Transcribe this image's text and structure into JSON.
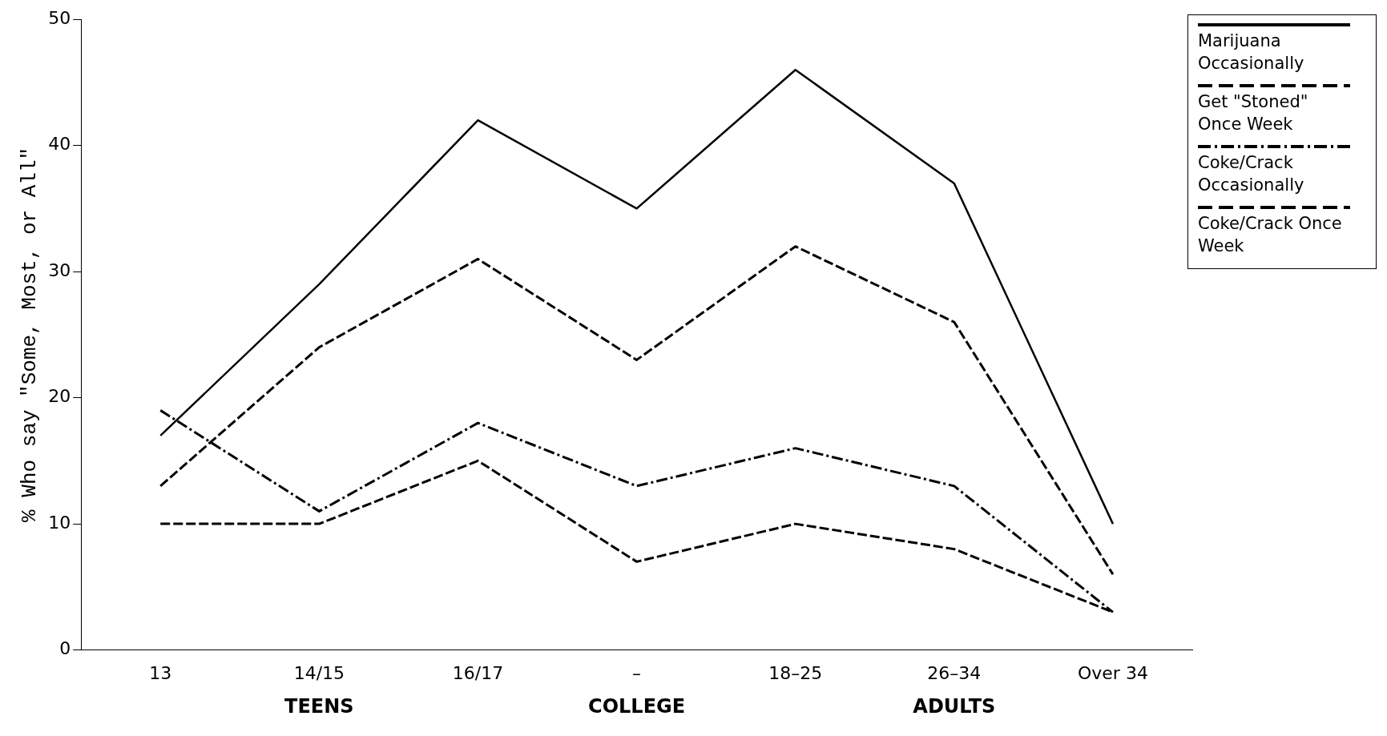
{
  "chart_data": {
    "type": "line",
    "ylabel": "% Who say \"Some, Most, or All\"",
    "categories": [
      "13",
      "14/15",
      "16/17",
      "–",
      "18–25",
      "26–34",
      "Over 34"
    ],
    "series": [
      {
        "name": "Marijuana Occasionally",
        "color": "#000000",
        "line_style": "solid",
        "values": [
          17,
          29,
          42,
          35,
          46,
          37,
          10
        ]
      },
      {
        "name": "Get \"Stoned\" Once Week",
        "color": "#000000",
        "line_style": "dashed",
        "values": [
          13,
          24,
          31,
          23,
          32,
          26,
          6
        ]
      },
      {
        "name": "Coke/Crack Occasionally",
        "color": "#000000",
        "line_style": "dotted",
        "values": [
          19,
          11,
          18,
          13,
          16,
          13,
          3
        ]
      },
      {
        "name": "Coke/Crack Once Week",
        "color": "#000000",
        "line_style": "dashed",
        "values": [
          10,
          10,
          15,
          7,
          10,
          8,
          3
        ]
      }
    ],
    "ylim": [
      0,
      50
    ],
    "yticks": [
      0,
      10,
      20,
      30,
      40,
      50
    ],
    "grid": false,
    "legend": "top right",
    "annotations": [
      "TEENS",
      "COLLEGE",
      "ADULTS"
    ]
  }
}
